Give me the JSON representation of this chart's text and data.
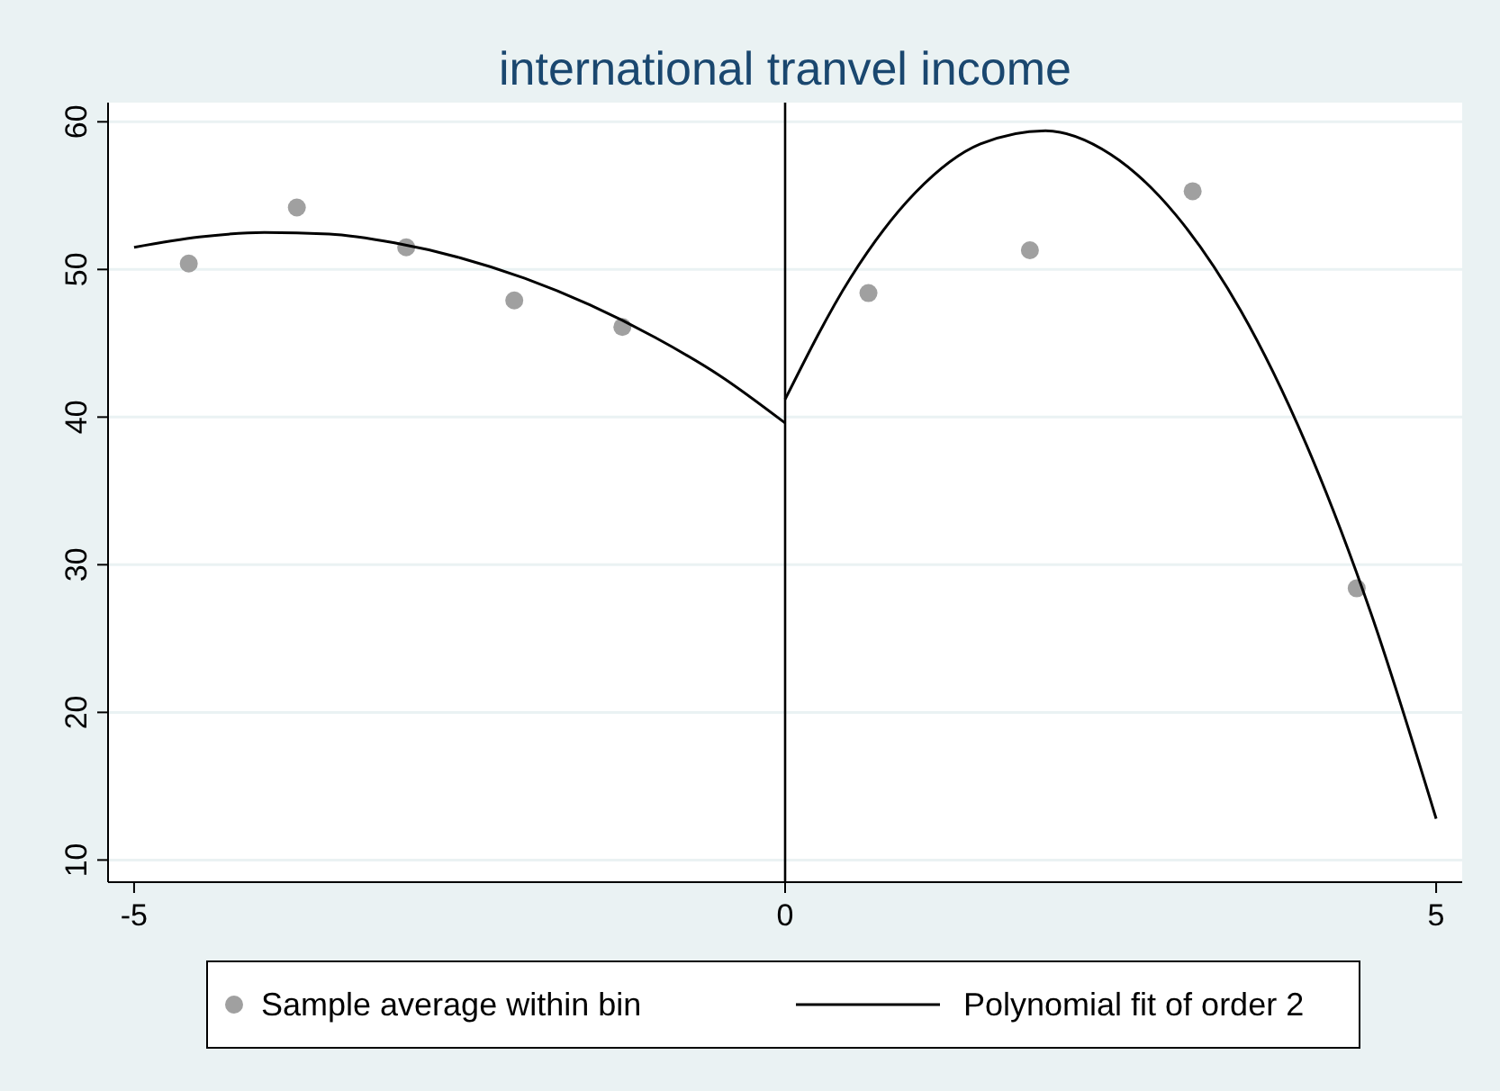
{
  "chart_data": {
    "type": "scatter",
    "title": "international tranvel income",
    "xlim": [
      -5.2,
      5.2
    ],
    "xticks": [
      -5,
      0,
      5
    ],
    "ylim": [
      8.5,
      61.3
    ],
    "yticks": [
      10,
      20,
      30,
      40,
      50,
      60
    ],
    "grid": "y",
    "legend": "bottom",
    "ref_lines": [
      {
        "axis": "x",
        "value": 0,
        "color": "#000000"
      }
    ],
    "series": [
      {
        "name": "Sample average within bin",
        "color": "#a0a0a0",
        "marker": "circle",
        "x": [
          -4.58,
          -3.75,
          -2.91,
          -2.08,
          -1.25,
          0.64,
          1.88,
          3.13,
          4.39
        ],
        "values": [
          50.4,
          54.2,
          51.5,
          47.9,
          46.1,
          48.4,
          51.3,
          55.3,
          28.4
        ]
      },
      {
        "name": "Polynomial fit of order 2",
        "type": "line",
        "color": "#000000",
        "line_style": "solid",
        "x": [
          -5,
          -4.5,
          -4,
          -3.5,
          -3,
          -2.5,
          -2,
          -1.5,
          -1,
          -0.5,
          0
        ],
        "values": [
          51.5,
          52.2,
          52.5,
          52.4,
          51.8,
          50.8,
          49.4,
          47.6,
          45.4,
          42.8,
          39.6
        ]
      },
      {
        "type": "line",
        "color": "#000000",
        "line_style": "solid",
        "x": [
          0,
          0.5,
          1,
          1.5,
          2,
          2.5,
          3,
          3.5,
          4,
          4.5,
          5
        ],
        "values": [
          41.2,
          49.4,
          55.2,
          58.5,
          59.4,
          57.8,
          53.7,
          47.2,
          38.2,
          26.7,
          12.8
        ]
      }
    ]
  }
}
